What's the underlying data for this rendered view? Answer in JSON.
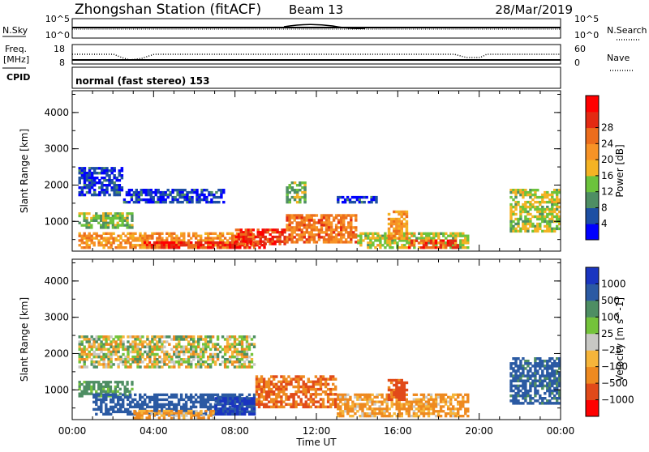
{
  "header": {
    "station": "Zhongshan Station (fitACF)",
    "beam": "Beam 13",
    "date": "28/Mar/2019"
  },
  "noise_panel": {
    "left_label": "N.Sky",
    "right_label": "N.Search",
    "ticks_left": [
      "10^5",
      "10^0"
    ],
    "ticks_right": [
      "10^5",
      "10^0"
    ]
  },
  "freq_panel": {
    "left_label_1": "Freq.",
    "left_label_2": "[MHz]",
    "right_label": "Nave",
    "ticks_left": [
      "18",
      "8"
    ],
    "ticks_right": [
      "60",
      "0"
    ]
  },
  "cpid": {
    "label": "CPID",
    "value": "normal (fast stereo) 153"
  },
  "x_axis": {
    "title": "Time UT",
    "ticks": [
      "00:00",
      "04:00",
      "08:00",
      "12:00",
      "16:00",
      "20:00",
      "00:00"
    ]
  },
  "y_axis_ticks": [
    "1000",
    "2000",
    "3000",
    "4000"
  ],
  "colors": {
    "power": [
      "#0000ff",
      "#1d4fa3",
      "#4e8e63",
      "#6cc33c",
      "#f4b323",
      "#f79326",
      "#ec6d1c",
      "#e32a13",
      "#ff0000"
    ],
    "velocity": [
      "#ff0000",
      "#e14a19",
      "#ee8a20",
      "#f6b53a",
      "#c8c8c4",
      "#74c33b",
      "#4e8e63",
      "#2b5aa3",
      "#1a35c0"
    ]
  },
  "chart_data": [
    {
      "type": "heatmap",
      "title": "",
      "xlabel": "",
      "ylabel": "Slant Range [km]",
      "x_range_hours": [
        0,
        24
      ],
      "ylim": [
        180,
        4600
      ],
      "colorbar": {
        "label": "Power [dB]",
        "ticks": [
          "4",
          "8",
          "12",
          "16",
          "20",
          "24",
          "28"
        ],
        "range": [
          0,
          32
        ]
      },
      "regions": [
        {
          "t": [
            0.3,
            2.5
          ],
          "r": [
            1700,
            2500
          ],
          "value": 4
        },
        {
          "t": [
            2.5,
            7.5
          ],
          "r": [
            1500,
            1900
          ],
          "value": 4
        },
        {
          "t": [
            0.3,
            3.0
          ],
          "r": [
            800,
            1250
          ],
          "value": 12
        },
        {
          "t": [
            0.3,
            9.0
          ],
          "r": [
            250,
            700
          ],
          "value": 20
        },
        {
          "t": [
            3.5,
            9.5
          ],
          "r": [
            250,
            450
          ],
          "value": 28
        },
        {
          "t": [
            8.0,
            10.5
          ],
          "r": [
            350,
            800
          ],
          "value": 27
        },
        {
          "t": [
            10.5,
            14.0
          ],
          "r": [
            400,
            1200
          ],
          "value": 22
        },
        {
          "t": [
            10.5,
            11.5
          ],
          "r": [
            1500,
            2100
          ],
          "value": 12
        },
        {
          "t": [
            14.0,
            19.5
          ],
          "r": [
            250,
            700
          ],
          "value": 14
        },
        {
          "t": [
            15.5,
            16.5
          ],
          "r": [
            500,
            1300
          ],
          "value": 20
        },
        {
          "t": [
            16.5,
            19.0
          ],
          "r": [
            250,
            500
          ],
          "value": 26
        },
        {
          "t": [
            21.5,
            24.0
          ],
          "r": [
            700,
            1900
          ],
          "value": 14
        },
        {
          "t": [
            13.0,
            15.0
          ],
          "r": [
            1500,
            1700
          ],
          "value": 4
        }
      ]
    },
    {
      "type": "heatmap",
      "title": "",
      "xlabel": "Time UT",
      "ylabel": "Slant Range [km]",
      "x_range_hours": [
        0,
        24
      ],
      "ylim": [
        180,
        4600
      ],
      "colorbar": {
        "label": "Velocity [m s^-1]",
        "ticks": [
          "1000",
          "500",
          "100",
          "25",
          "−25",
          "−100",
          "−500",
          "−1000"
        ],
        "range": [
          -1200,
          1200
        ]
      },
      "regions": [
        {
          "t": [
            0.3,
            9.0
          ],
          "r": [
            1600,
            2500
          ],
          "value": 0
        },
        {
          "t": [
            0.3,
            3.0
          ],
          "r": [
            800,
            1250
          ],
          "value": 200
        },
        {
          "t": [
            1.0,
            9.0
          ],
          "r": [
            300,
            900
          ],
          "value": 700
        },
        {
          "t": [
            3.0,
            7.0
          ],
          "r": [
            200,
            450
          ],
          "value": -150
        },
        {
          "t": [
            7.0,
            9.0
          ],
          "r": [
            300,
            800
          ],
          "value": 1100
        },
        {
          "t": [
            9.0,
            13.0
          ],
          "r": [
            500,
            1400
          ],
          "value": -500
        },
        {
          "t": [
            13.0,
            19.5
          ],
          "r": [
            250,
            900
          ],
          "value": -150
        },
        {
          "t": [
            15.5,
            16.5
          ],
          "r": [
            700,
            1300
          ],
          "value": -600
        },
        {
          "t": [
            21.5,
            24.0
          ],
          "r": [
            600,
            1900
          ],
          "value": 600
        }
      ]
    }
  ]
}
